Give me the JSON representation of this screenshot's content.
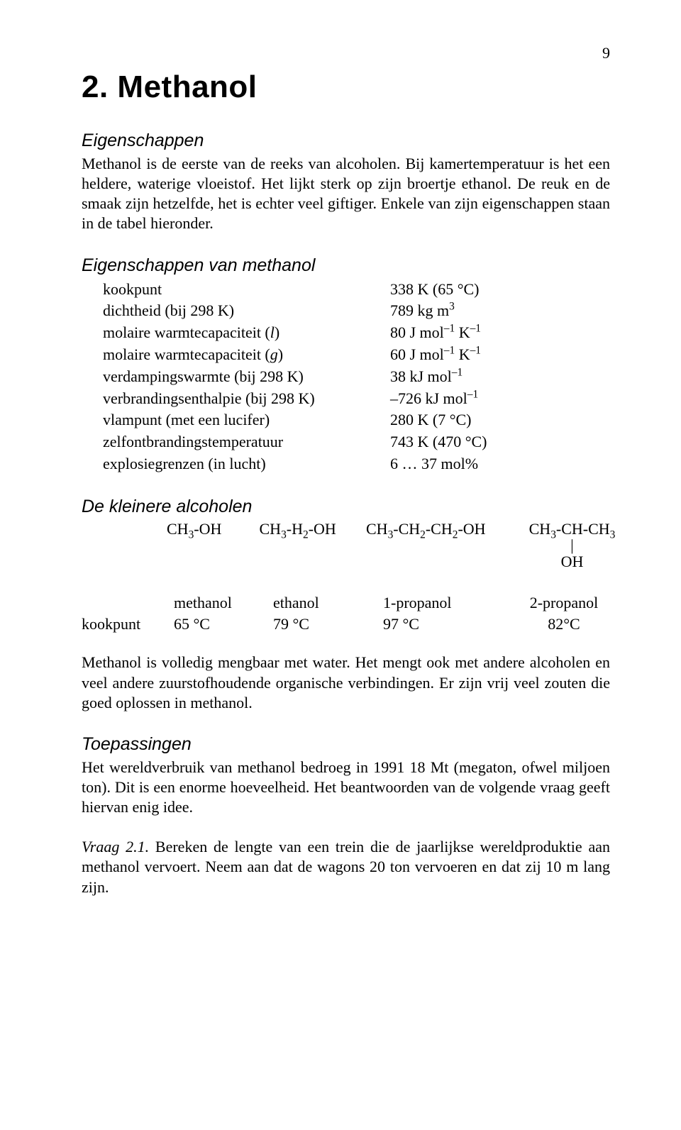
{
  "page_number": "9",
  "title": "2. Methanol",
  "sec_eigenschappen": {
    "heading": "Eigenschappen",
    "para": "Methanol is de eerste van de reeks van alcoholen. Bij kamertemperatuur is het een heldere, waterige vloeistof. Het lijkt sterk op zijn broertje ethanol. De reuk en de smaak zijn hetzelfde, het is echter veel giftiger. Enkele van zijn eigenschappen staan in de tabel hieronder."
  },
  "sec_props": {
    "heading": "Eigenschappen van methanol",
    "rows": [
      {
        "label": "kookpunt",
        "value": "338 K (65 °C)"
      },
      {
        "label": "dichtheid (bij 298 K)",
        "value_html": "789 kg m<sup>3</sup>"
      },
      {
        "label_html": "molaire warmtecapaciteit (<i>l</i>)",
        "value_html": "80 J mol<sup>–1</sup> K<sup>–1</sup>"
      },
      {
        "label_html": "molaire warmtecapaciteit (<i>g</i>)",
        "value_html": "60 J mol<sup>–1</sup> K<sup>–1</sup>"
      },
      {
        "label": "verdampingswarmte (bij 298 K)",
        "value_html": "38 kJ mol<sup>–1</sup>"
      },
      {
        "label": "verbrandingsenthalpie (bij 298 K)",
        "value_html": "–726 kJ mol<sup>–1</sup>"
      },
      {
        "label": "vlampunt (met een lucifer)",
        "value": "280 K (7 °C)"
      },
      {
        "label": "zelfontbrandingstemperatuur",
        "value": "743 K (470 °C)"
      },
      {
        "label": "explosiegrenzen (in lucht)",
        "value": "6 … 37 mol%"
      }
    ]
  },
  "sec_kleinere": {
    "heading": "De kleinere alcoholen",
    "formulas": {
      "f1": "CH<sub>3</sub>-OH",
      "f2": "CH<sub>3</sub>-H<sub>2</sub>-OH",
      "f3": "CH<sub>3</sub>-CH<sub>2</sub>-CH<sub>2</sub>-OH",
      "f4_top": "CH<sub>3</sub>-CH-CH<sub>3</sub>",
      "f4_bar": "|",
      "f4_oh": "OH"
    },
    "table": {
      "header": [
        "",
        "methanol",
        "ethanol",
        "1-propanol",
        "2-propanol"
      ],
      "row": [
        "kookpunt",
        "65 °C",
        "79 °C",
        "97 °C",
        "82°C"
      ]
    },
    "para": "Methanol is volledig mengbaar met water. Het mengt ook met andere alcoholen en veel andere zuurstofhoudende organische verbindingen. Er zijn vrij veel zouten die goed oplossen in methanol."
  },
  "sec_toepassingen": {
    "heading": "Toepassingen",
    "para": "Het wereldverbruik van methanol bedroeg in 1991 18 Mt (megaton, ofwel miljoen ton). Dit is een enorme hoeveelheid. Het beantwoorden van de volgende vraag geeft hiervan enig idee."
  },
  "vraag": {
    "label": "Vraag 2.1.",
    "text": " Bereken de lengte van een trein die de jaarlijkse wereldproduktie aan methanol vervoert. Neem aan dat de wagons 20 ton vervoeren en dat zij 10 m lang zijn."
  }
}
